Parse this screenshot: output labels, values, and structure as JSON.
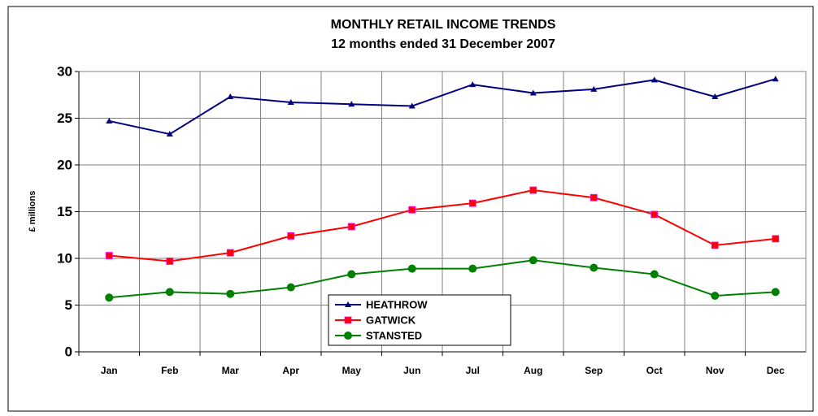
{
  "chart_data": {
    "type": "line",
    "title": "MONTHLY RETAIL INCOME TRENDS",
    "subtitle": "12 months ended 31 December 2007",
    "y_label": "£ millions",
    "categories": [
      "Jan",
      "Feb",
      "Mar",
      "Apr",
      "May",
      "Jun",
      "Jul",
      "Aug",
      "Sep",
      "Oct",
      "Nov",
      "Dec"
    ],
    "series": [
      {
        "name": "HEATHROW",
        "color": "#000080",
        "marker": "triangle",
        "values": [
          24.7,
          23.3,
          27.3,
          26.7,
          26.5,
          26.3,
          28.6,
          27.7,
          28.1,
          29.1,
          27.3,
          29.2
        ]
      },
      {
        "name": "GATWICK",
        "color": "#ff0000",
        "marker": "square",
        "values": [
          10.3,
          9.7,
          10.6,
          12.4,
          13.4,
          15.2,
          15.9,
          17.3,
          16.5,
          14.7,
          11.4,
          12.1
        ]
      },
      {
        "name": "STANSTED",
        "color": "#008000",
        "marker": "circle",
        "values": [
          5.8,
          6.4,
          6.2,
          6.9,
          8.3,
          8.9,
          8.9,
          9.8,
          9.0,
          8.3,
          6.0,
          6.4
        ]
      }
    ],
    "ylim": [
      0,
      30
    ],
    "yticks": [
      0,
      5,
      10,
      15,
      20,
      25,
      30
    ],
    "grid": true
  }
}
